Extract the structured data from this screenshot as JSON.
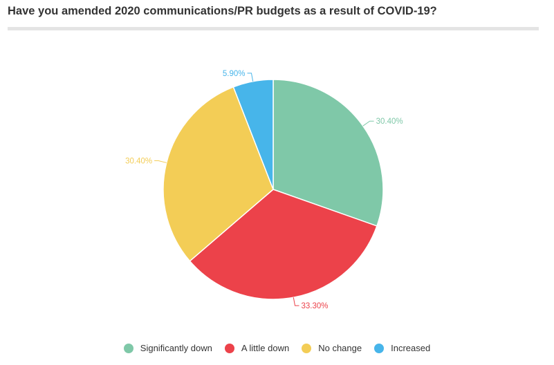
{
  "title": "Have you amended 2020 communications/PR budgets as a result of COVID-19?",
  "chart_data": {
    "type": "pie",
    "title": "Have you amended 2020 communications/PR budgets as a result of COVID-19?",
    "categories": [
      "Significantly down",
      "A little down",
      "No change",
      "Increased"
    ],
    "values": [
      30.4,
      33.3,
      30.4,
      5.9
    ],
    "labels": [
      "30.40%",
      "33.30%",
      "30.40%",
      "5.90%"
    ],
    "colors": [
      "#7fc8a8",
      "#ec424a",
      "#f3cd56",
      "#47b5ea"
    ],
    "legend_position": "bottom-center",
    "start_angle": "top, clockwise"
  },
  "legend": [
    {
      "label": "Significantly down",
      "color": "#7fc8a8"
    },
    {
      "label": "A little down",
      "color": "#ec424a"
    },
    {
      "label": "No change",
      "color": "#f3cd56"
    },
    {
      "label": "Increased",
      "color": "#47b5ea"
    }
  ]
}
